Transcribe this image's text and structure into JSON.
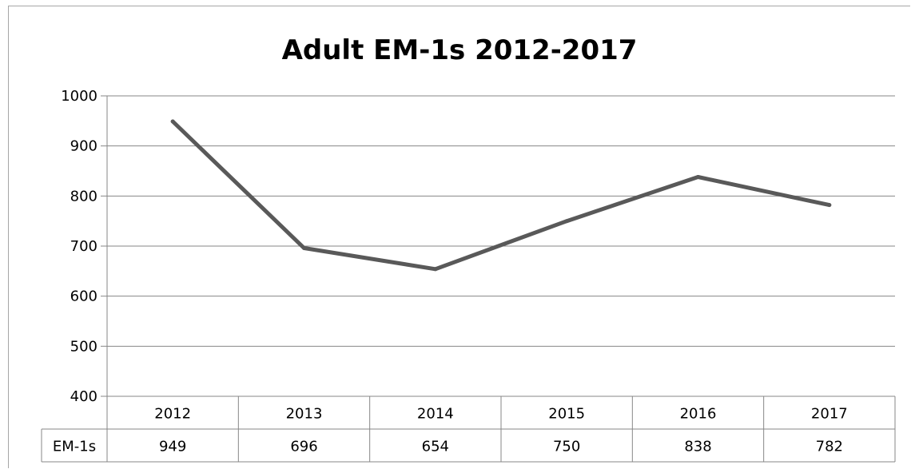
{
  "chart_data": {
    "type": "line",
    "title": "Adult EM-1s 2012-2017",
    "xlabel": "",
    "ylabel": "",
    "categories": [
      "2012",
      "2013",
      "2014",
      "2015",
      "2016",
      "2017"
    ],
    "series": [
      {
        "name": "EM-1s",
        "values": [
          949,
          696,
          654,
          750,
          838,
          782
        ]
      }
    ],
    "ylim": [
      400,
      1000
    ],
    "yticks": [
      "1000",
      "900",
      "800",
      "700",
      "600",
      "500",
      "400"
    ],
    "data_table_row_label": "EM-1s",
    "data_table_values": [
      "949",
      "696",
      "654",
      "750",
      "838",
      "782"
    ],
    "grid": true,
    "legend": "none",
    "line_color": "#595959"
  }
}
